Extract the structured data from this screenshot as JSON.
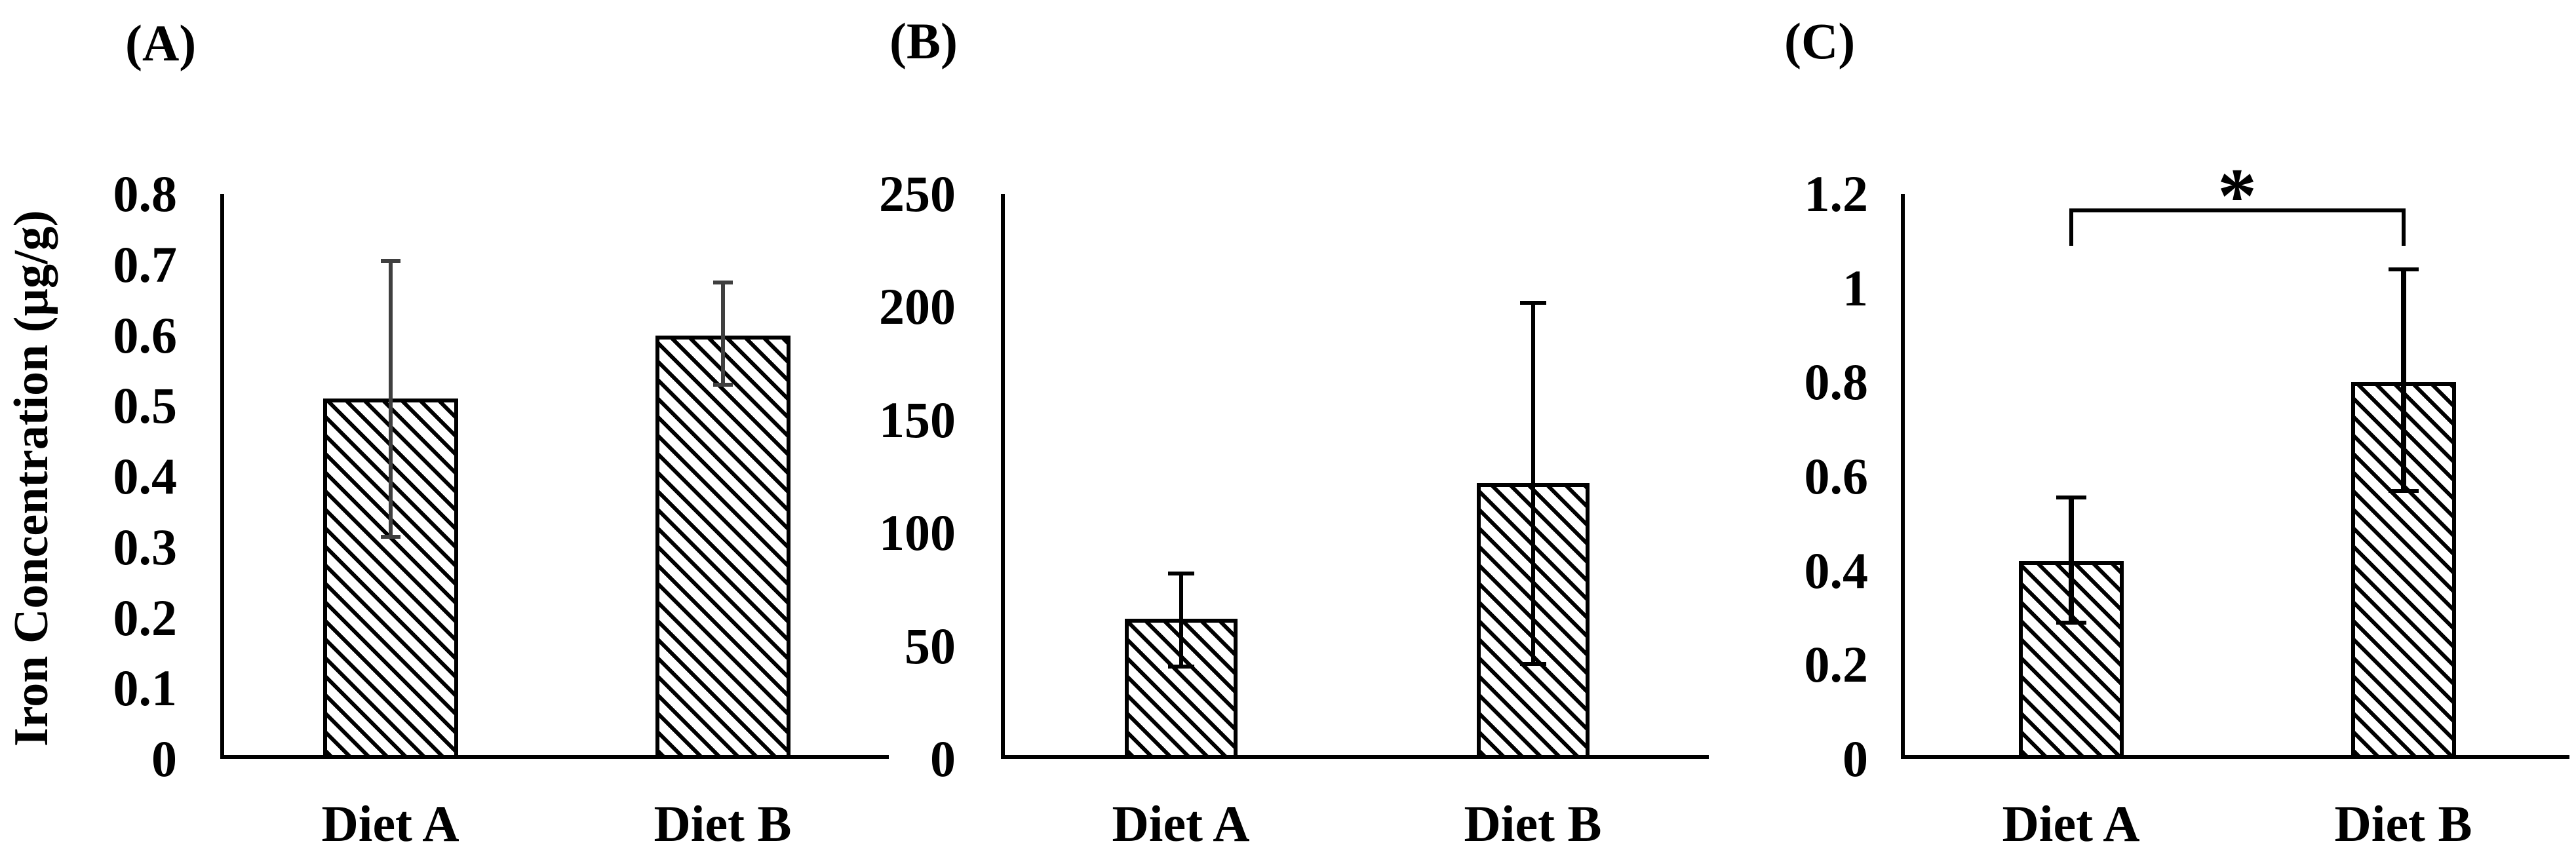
{
  "figure": {
    "y_axis_title": "Iron Concentration (µg/g)",
    "panel_labels": [
      "(A)",
      "(B)",
      "(C)"
    ],
    "bar_pattern": "diagonal-hatch-45deg",
    "bar_fill": "#ffffff",
    "hatch_color": "#000000",
    "axis_color": "#000000"
  },
  "chart_data": [
    {
      "type": "bar",
      "panel_label": "(A)",
      "title": "",
      "xlabel": "",
      "ylabel": "Iron Concentration (µg/g)",
      "ylim": [
        0,
        0.8
      ],
      "ytick_labels": [
        "0.8",
        "0.7",
        "0.6",
        "0.5",
        "0.4",
        "0.3",
        "0.2",
        "0.1",
        "0"
      ],
      "categories": [
        "Diet A",
        "Diet B"
      ],
      "values": [
        0.51,
        0.6
      ],
      "error_low": [
        0.315,
        0.53
      ],
      "error_high": [
        0.705,
        0.675
      ],
      "error_color": "#3f3f3f",
      "grid": "off",
      "legend": "none"
    },
    {
      "type": "bar",
      "panel_label": "(B)",
      "title": "",
      "xlabel": "",
      "ylabel": "",
      "ylim": [
        0,
        250
      ],
      "ytick_labels": [
        "250",
        "200",
        "150",
        "100",
        "50",
        "0"
      ],
      "categories": [
        "Diet A",
        "Diet B"
      ],
      "values": [
        62,
        122
      ],
      "error_low": [
        41,
        42
      ],
      "error_high": [
        82,
        202
      ],
      "error_color": "#000000",
      "grid": "off",
      "legend": "none"
    },
    {
      "type": "bar",
      "panel_label": "(C)",
      "title": "",
      "xlabel": "",
      "ylabel": "",
      "ylim": [
        0,
        1.2
      ],
      "ytick_labels": [
        "1.2",
        "1",
        "0.8",
        "0.6",
        "0.4",
        "0.2",
        "0"
      ],
      "categories": [
        "Diet A",
        "Diet B"
      ],
      "values": [
        0.42,
        0.8
      ],
      "error_low": [
        0.29,
        0.57
      ],
      "error_high": [
        0.555,
        1.04
      ],
      "error_color": "#000000",
      "grid": "off",
      "legend": "none",
      "significance": {
        "symbol": "*",
        "between": [
          "Diet A",
          "Diet B"
        ],
        "bracket_top_value": 1.17,
        "bracket_tick_bottom_value": 1.09
      }
    }
  ]
}
